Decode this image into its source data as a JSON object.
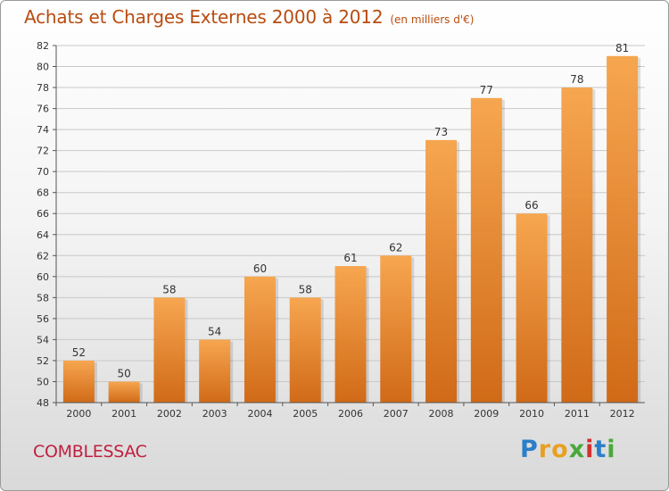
{
  "header": {
    "title": "Achats et Charges Externes 2000 à 2012",
    "subtitle": "(en milliers d'€)"
  },
  "footer": {
    "commune": "COMBLESSAC",
    "logo_letters": [
      "P",
      "r",
      "o",
      "x",
      "i",
      "t",
      "i"
    ],
    "logo_colors": [
      "#2b7ec8",
      "#e8a020",
      "#e8a020",
      "#4aa83a",
      "#d03030",
      "#2b7ec8",
      "#4aa83a"
    ]
  },
  "colors": {
    "bar_light": "#f7a650",
    "bar_dark": "#d06a18",
    "title": "#b84c10",
    "grid": "#c8c8c8"
  },
  "chart_data": {
    "type": "bar",
    "title": "Achats et Charges Externes 2000 à 2012",
    "subtitle": "(en milliers d'€)",
    "categories": [
      "2000",
      "2001",
      "2002",
      "2003",
      "2004",
      "2005",
      "2006",
      "2007",
      "2008",
      "2009",
      "2010",
      "2011",
      "2012"
    ],
    "values": [
      52,
      50,
      58,
      54,
      60,
      58,
      61,
      62,
      73,
      77,
      66,
      78,
      81
    ],
    "ylim": [
      48,
      82
    ],
    "yticks": [
      48,
      50,
      52,
      54,
      56,
      58,
      60,
      62,
      64,
      66,
      68,
      70,
      72,
      74,
      76,
      78,
      80,
      82
    ],
    "grid": true,
    "legend": "none"
  }
}
